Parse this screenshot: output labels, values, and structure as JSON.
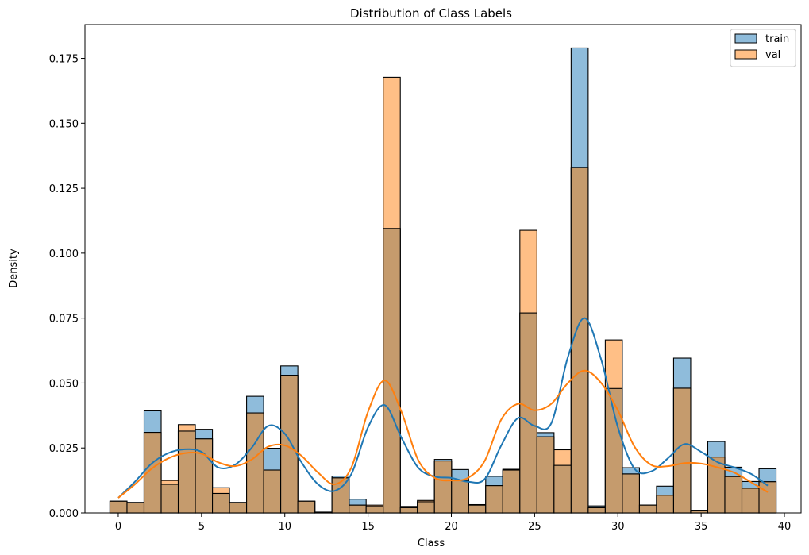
{
  "chart_data": {
    "type": "bar",
    "title": "Distribution of Class Labels",
    "xlabel": "Class",
    "ylabel": "Density",
    "xlim": [
      -2,
      41
    ],
    "ylim": [
      0,
      0.188
    ],
    "xticks": [
      0,
      5,
      10,
      15,
      20,
      25,
      30,
      35,
      40
    ],
    "yticks": [
      0.0,
      0.025,
      0.05,
      0.075,
      0.1,
      0.125,
      0.15,
      0.175
    ],
    "ytick_labels": [
      "0.000",
      "0.025",
      "0.050",
      "0.075",
      "0.100",
      "0.125",
      "0.150",
      "0.175"
    ],
    "bin_range": [
      -0.5,
      39.5
    ],
    "grid": false,
    "legend_position": "top-right",
    "series": [
      {
        "name": "train",
        "color": "#1f77b4",
        "values": [
          0.0045,
          0.004,
          0.0393,
          0.011,
          0.0315,
          0.0322,
          0.0075,
          0.004,
          0.0449,
          0.0249,
          0.0566,
          0.0045,
          0.0003,
          0.0142,
          0.0053,
          0.0025,
          0.1095,
          0.002,
          0.0043,
          0.0206,
          0.0167,
          0.0032,
          0.0141,
          0.0165,
          0.077,
          0.0309,
          0.0183,
          0.179,
          0.0027,
          0.0479,
          0.0174,
          0.003,
          0.0103,
          0.0596,
          0.001,
          0.0275,
          0.0176,
          0.0121,
          0.017
        ],
        "kde": [
          [
            0,
            0.0058
          ],
          [
            1,
            0.012
          ],
          [
            2,
            0.019
          ],
          [
            3,
            0.023
          ],
          [
            4,
            0.0245
          ],
          [
            5,
            0.0235
          ],
          [
            6,
            0.0175
          ],
          [
            7,
            0.0185
          ],
          [
            8,
            0.025
          ],
          [
            9,
            0.0335
          ],
          [
            10,
            0.0305
          ],
          [
            11,
            0.0195
          ],
          [
            12,
            0.011
          ],
          [
            13,
            0.0085
          ],
          [
            14,
            0.015
          ],
          [
            15,
            0.033
          ],
          [
            16,
            0.0415
          ],
          [
            17,
            0.029
          ],
          [
            18,
            0.0175
          ],
          [
            19,
            0.014
          ],
          [
            20,
            0.0135
          ],
          [
            21,
            0.012
          ],
          [
            22,
            0.013
          ],
          [
            23,
            0.026
          ],
          [
            24,
            0.0365
          ],
          [
            25,
            0.0335
          ],
          [
            26,
            0.0345
          ],
          [
            27,
            0.06
          ],
          [
            28,
            0.075
          ],
          [
            29,
            0.059
          ],
          [
            30,
            0.033
          ],
          [
            31,
            0.017
          ],
          [
            32,
            0.016
          ],
          [
            33,
            0.021
          ],
          [
            34,
            0.0265
          ],
          [
            35,
            0.0235
          ],
          [
            36,
            0.0195
          ],
          [
            37,
            0.0175
          ],
          [
            38,
            0.015
          ],
          [
            39,
            0.0105
          ]
        ]
      },
      {
        "name": "val",
        "color": "#ff7f0e",
        "values": [
          0.0045,
          0.004,
          0.031,
          0.0125,
          0.034,
          0.0285,
          0.0097,
          0.004,
          0.0385,
          0.0165,
          0.053,
          0.0045,
          0.0003,
          0.0135,
          0.003,
          0.003,
          0.1677,
          0.0025,
          0.0048,
          0.02,
          0.0125,
          0.003,
          0.0105,
          0.0168,
          0.1088,
          0.0293,
          0.0243,
          0.133,
          0.002,
          0.0666,
          0.015,
          0.003,
          0.0068,
          0.048,
          0.001,
          0.0215,
          0.014,
          0.0095,
          0.012
        ],
        "kde": [
          [
            0,
            0.0058
          ],
          [
            1,
            0.011
          ],
          [
            2,
            0.017
          ],
          [
            3,
            0.021
          ],
          [
            4,
            0.023
          ],
          [
            5,
            0.0228
          ],
          [
            6,
            0.0195
          ],
          [
            7,
            0.018
          ],
          [
            8,
            0.0205
          ],
          [
            9,
            0.0255
          ],
          [
            10,
            0.026
          ],
          [
            11,
            0.022
          ],
          [
            12,
            0.0155
          ],
          [
            13,
            0.011
          ],
          [
            14,
            0.0175
          ],
          [
            15,
            0.039
          ],
          [
            16,
            0.051
          ],
          [
            17,
            0.039
          ],
          [
            18,
            0.0205
          ],
          [
            19,
            0.0135
          ],
          [
            20,
            0.0125
          ],
          [
            21,
            0.0135
          ],
          [
            22,
            0.02
          ],
          [
            23,
            0.036
          ],
          [
            24,
            0.042
          ],
          [
            25,
            0.0395
          ],
          [
            26,
            0.042
          ],
          [
            27,
            0.05
          ],
          [
            28,
            0.0548
          ],
          [
            29,
            0.05
          ],
          [
            30,
            0.0395
          ],
          [
            31,
            0.0255
          ],
          [
            32,
            0.0185
          ],
          [
            33,
            0.018
          ],
          [
            34,
            0.0192
          ],
          [
            35,
            0.019
          ],
          [
            36,
            0.0175
          ],
          [
            37,
            0.0155
          ],
          [
            38,
            0.0118
          ],
          [
            39,
            0.008
          ]
        ]
      }
    ]
  }
}
